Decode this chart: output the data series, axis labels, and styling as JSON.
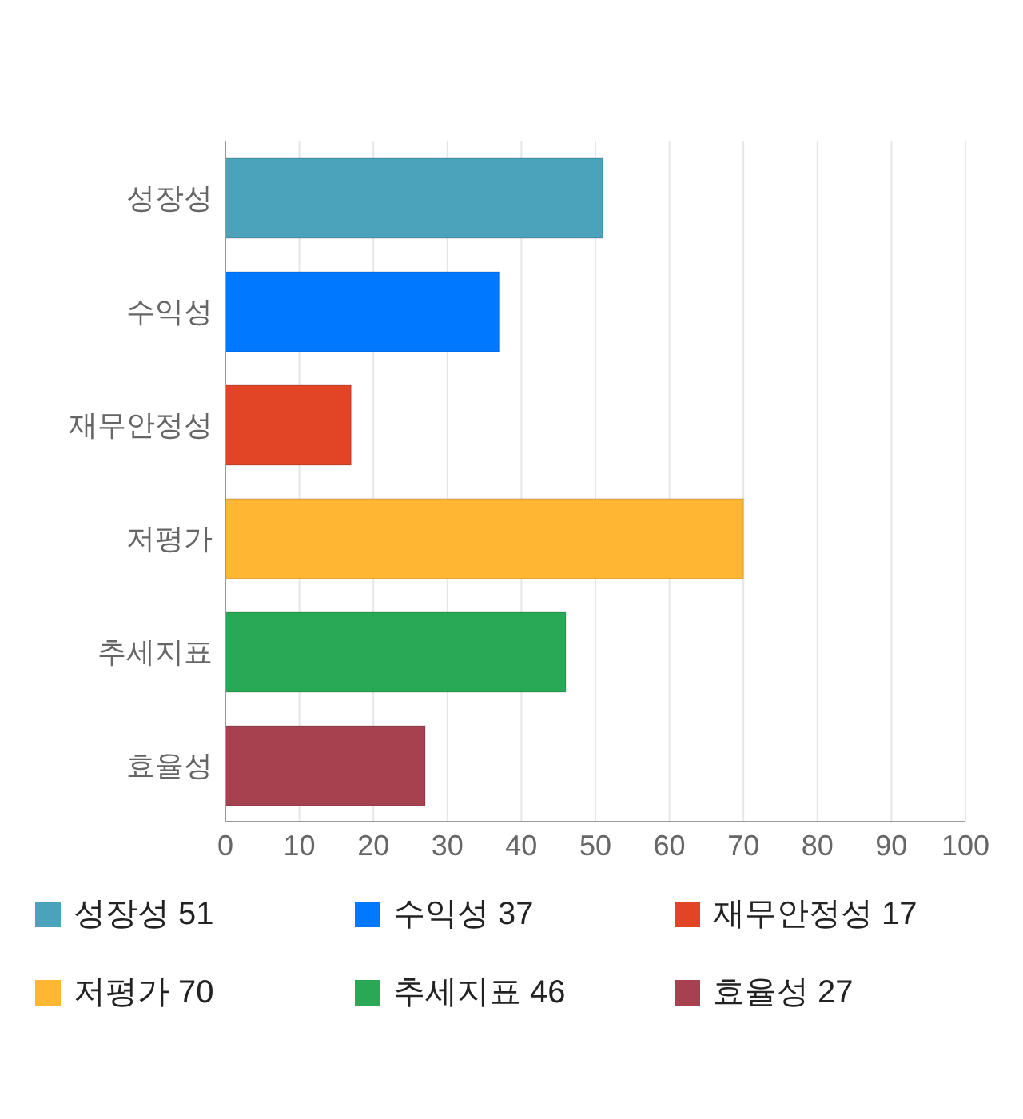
{
  "chart_data": {
    "type": "bar",
    "orientation": "horizontal",
    "stacked": true,
    "categories": [
      "성장성",
      "수익성",
      "재무안정성",
      "저평가",
      "추세지표",
      "효율성"
    ],
    "series": [
      {
        "name": "성장성 51",
        "color": "#4aa3ba",
        "values": [
          51,
          null,
          null,
          null,
          null,
          null
        ]
      },
      {
        "name": "수익성 37",
        "color": "#0078ff",
        "values": [
          null,
          37,
          null,
          null,
          null,
          null
        ]
      },
      {
        "name": "재무안정성 17",
        "color": "#e24426",
        "values": [
          null,
          null,
          17,
          null,
          null,
          null
        ]
      },
      {
        "name": "저평가 70",
        "color": "#ffb733",
        "values": [
          null,
          null,
          null,
          70,
          null,
          null
        ]
      },
      {
        "name": "추세지표 46",
        "color": "#29a856",
        "values": [
          null,
          null,
          null,
          null,
          46,
          null
        ]
      },
      {
        "name": "효율성 27",
        "color": "#a6414f",
        "values": [
          null,
          null,
          null,
          null,
          null,
          27
        ]
      }
    ],
    "xlim": [
      0,
      100
    ],
    "xticks": [
      0,
      10,
      20,
      30,
      40,
      50,
      60,
      70,
      80,
      90,
      100
    ],
    "grid": "x",
    "legend": "bottom"
  }
}
